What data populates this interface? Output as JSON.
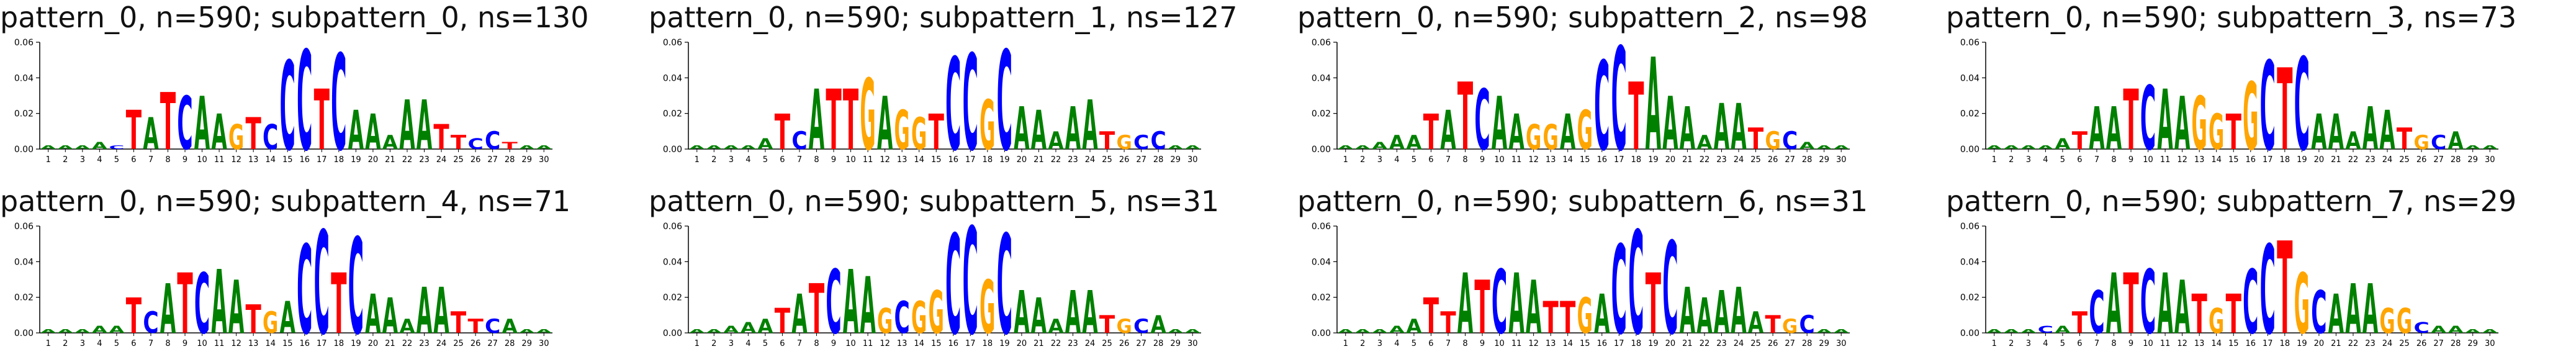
{
  "chart_data": [
    {
      "type": "sequence-logo",
      "title": "pattern_0, n=590; subpattern_0, ns=130",
      "ylim": [
        0,
        0.06
      ],
      "y_ticks": [
        "0.00",
        "0.02",
        "0.04",
        "0.06"
      ],
      "positions": [
        "1",
        "2",
        "3",
        "4",
        "5",
        "6",
        "7",
        "8",
        "9",
        "10",
        "11",
        "12",
        "13",
        "14",
        "15",
        "16",
        "17",
        "18",
        "19",
        "20",
        "21",
        "22",
        "23",
        "24",
        "25",
        "26",
        "27",
        "28",
        "29",
        "30"
      ],
      "consensus": [
        "A",
        "A",
        "A",
        "A",
        "C",
        "T",
        "A",
        "T",
        "C",
        "A",
        "A",
        "G",
        "T",
        "C",
        "C",
        "C",
        "T",
        "C",
        "A",
        "A",
        "A",
        "A",
        "A",
        "T",
        "T",
        "C",
        "C",
        "T",
        "A",
        "A"
      ],
      "heights": [
        0.002,
        0.002,
        0.002,
        0.004,
        0.002,
        0.022,
        0.018,
        0.032,
        0.03,
        0.03,
        0.02,
        0.014,
        0.018,
        0.014,
        0.05,
        0.056,
        0.034,
        0.054,
        0.022,
        0.02,
        0.008,
        0.028,
        0.028,
        0.014,
        0.008,
        0.006,
        0.01,
        0.004,
        0.002,
        0.002
      ]
    },
    {
      "type": "sequence-logo",
      "title": "pattern_0, n=590; subpattern_1, ns=127",
      "ylim": [
        0,
        0.06
      ],
      "y_ticks": [
        "0.00",
        "0.02",
        "0.04",
        "0.06"
      ],
      "positions": [
        "1",
        "2",
        "3",
        "4",
        "5",
        "6",
        "7",
        "8",
        "9",
        "10",
        "11",
        "12",
        "13",
        "14",
        "15",
        "16",
        "17",
        "18",
        "19",
        "20",
        "21",
        "22",
        "23",
        "24",
        "25",
        "26",
        "27",
        "28",
        "29",
        "30"
      ],
      "consensus": [
        "A",
        "A",
        "A",
        "A",
        "A",
        "T",
        "C",
        "A",
        "T",
        "T",
        "G",
        "A",
        "G",
        "G",
        "T",
        "C",
        "C",
        "G",
        "C",
        "A",
        "A",
        "A",
        "A",
        "A",
        "T",
        "G",
        "C",
        "C",
        "A",
        "A"
      ],
      "heights": [
        0.002,
        0.002,
        0.002,
        0.002,
        0.006,
        0.02,
        0.01,
        0.034,
        0.034,
        0.034,
        0.04,
        0.03,
        0.022,
        0.018,
        0.02,
        0.052,
        0.054,
        0.028,
        0.056,
        0.024,
        0.022,
        0.01,
        0.024,
        0.028,
        0.01,
        0.008,
        0.008,
        0.01,
        0.002,
        0.002
      ]
    },
    {
      "type": "sequence-logo",
      "title": "pattern_0, n=590; subpattern_2, ns=98",
      "ylim": [
        0,
        0.06
      ],
      "y_ticks": [
        "0.00",
        "0.02",
        "0.04",
        "0.06"
      ],
      "positions": [
        "1",
        "2",
        "3",
        "4",
        "5",
        "6",
        "7",
        "8",
        "9",
        "10",
        "11",
        "12",
        "13",
        "14",
        "15",
        "16",
        "17",
        "18",
        "19",
        "20",
        "21",
        "22",
        "23",
        "24",
        "25",
        "26",
        "27",
        "28",
        "29",
        "30"
      ],
      "consensus": [
        "A",
        "A",
        "A",
        "A",
        "A",
        "T",
        "A",
        "T",
        "C",
        "A",
        "A",
        "G",
        "G",
        "A",
        "G",
        "C",
        "C",
        "T",
        "A",
        "A",
        "A",
        "A",
        "A",
        "A",
        "T",
        "G",
        "C",
        "A",
        "A",
        "A"
      ],
      "heights": [
        0.002,
        0.002,
        0.004,
        0.008,
        0.008,
        0.02,
        0.022,
        0.038,
        0.034,
        0.03,
        0.02,
        0.014,
        0.014,
        0.02,
        0.022,
        0.05,
        0.058,
        0.038,
        0.052,
        0.03,
        0.024,
        0.008,
        0.026,
        0.026,
        0.012,
        0.01,
        0.01,
        0.004,
        0.002,
        0.002
      ]
    },
    {
      "type": "sequence-logo",
      "title": "pattern_0, n=590; subpattern_3, ns=73",
      "ylim": [
        0,
        0.06
      ],
      "y_ticks": [
        "0.00",
        "0.02",
        "0.04",
        "0.06"
      ],
      "positions": [
        "1",
        "2",
        "3",
        "4",
        "5",
        "6",
        "7",
        "8",
        "9",
        "10",
        "11",
        "12",
        "13",
        "14",
        "15",
        "16",
        "17",
        "18",
        "19",
        "20",
        "21",
        "22",
        "23",
        "24",
        "25",
        "26",
        "27",
        "28",
        "29",
        "30"
      ],
      "consensus": [
        "A",
        "A",
        "A",
        "A",
        "A",
        "T",
        "A",
        "A",
        "T",
        "C",
        "A",
        "A",
        "G",
        "G",
        "T",
        "G",
        "C",
        "T",
        "C",
        "A",
        "A",
        "A",
        "A",
        "A",
        "T",
        "G",
        "C",
        "A",
        "A",
        "A"
      ],
      "heights": [
        0.002,
        0.002,
        0.002,
        0.002,
        0.006,
        0.01,
        0.024,
        0.024,
        0.034,
        0.036,
        0.034,
        0.03,
        0.03,
        0.02,
        0.02,
        0.038,
        0.05,
        0.046,
        0.052,
        0.02,
        0.02,
        0.01,
        0.024,
        0.022,
        0.012,
        0.008,
        0.008,
        0.01,
        0.002,
        0.002
      ]
    },
    {
      "type": "sequence-logo",
      "title": "pattern_0, n=590; subpattern_4, ns=71",
      "ylim": [
        0,
        0.06
      ],
      "y_ticks": [
        "0.00",
        "0.02",
        "0.04",
        "0.06"
      ],
      "positions": [
        "1",
        "2",
        "3",
        "4",
        "5",
        "6",
        "7",
        "8",
        "9",
        "10",
        "11",
        "12",
        "13",
        "14",
        "15",
        "16",
        "17",
        "18",
        "19",
        "20",
        "21",
        "22",
        "23",
        "24",
        "25",
        "26",
        "27",
        "28",
        "29",
        "30"
      ],
      "consensus": [
        "A",
        "A",
        "A",
        "A",
        "A",
        "T",
        "C",
        "A",
        "T",
        "C",
        "A",
        "A",
        "T",
        "G",
        "A",
        "C",
        "C",
        "T",
        "C",
        "A",
        "A",
        "A",
        "A",
        "A",
        "T",
        "T",
        "C",
        "A",
        "A",
        "A"
      ],
      "heights": [
        0.002,
        0.002,
        0.002,
        0.004,
        0.004,
        0.02,
        0.012,
        0.028,
        0.034,
        0.034,
        0.036,
        0.03,
        0.016,
        0.012,
        0.018,
        0.05,
        0.058,
        0.034,
        0.054,
        0.022,
        0.02,
        0.008,
        0.026,
        0.026,
        0.012,
        0.008,
        0.008,
        0.008,
        0.002,
        0.002
      ]
    },
    {
      "type": "sequence-logo",
      "title": "pattern_0, n=590; subpattern_5, ns=31",
      "ylim": [
        0,
        0.06
      ],
      "y_ticks": [
        "0.00",
        "0.02",
        "0.04",
        "0.06"
      ],
      "positions": [
        "1",
        "2",
        "3",
        "4",
        "5",
        "6",
        "7",
        "8",
        "9",
        "10",
        "11",
        "12",
        "13",
        "14",
        "15",
        "16",
        "17",
        "18",
        "19",
        "20",
        "21",
        "22",
        "23",
        "24",
        "25",
        "26",
        "27",
        "28",
        "29",
        "30"
      ],
      "consensus": [
        "A",
        "A",
        "A",
        "A",
        "A",
        "T",
        "A",
        "T",
        "C",
        "A",
        "A",
        "G",
        "C",
        "G",
        "G",
        "C",
        "C",
        "G",
        "C",
        "A",
        "A",
        "A",
        "A",
        "A",
        "T",
        "G",
        "C",
        "A",
        "A",
        "A"
      ],
      "heights": [
        0.002,
        0.002,
        0.004,
        0.006,
        0.008,
        0.014,
        0.022,
        0.028,
        0.036,
        0.036,
        0.032,
        0.014,
        0.018,
        0.018,
        0.024,
        0.056,
        0.06,
        0.03,
        0.056,
        0.024,
        0.02,
        0.008,
        0.024,
        0.024,
        0.01,
        0.008,
        0.008,
        0.01,
        0.002,
        0.002
      ]
    },
    {
      "type": "sequence-logo",
      "title": "pattern_0, n=590; subpattern_6, ns=31",
      "ylim": [
        0,
        0.06
      ],
      "y_ticks": [
        "0.00",
        "0.02",
        "0.04",
        "0.06"
      ],
      "positions": [
        "1",
        "2",
        "3",
        "4",
        "5",
        "6",
        "7",
        "8",
        "9",
        "10",
        "11",
        "12",
        "13",
        "14",
        "15",
        "16",
        "17",
        "18",
        "19",
        "20",
        "21",
        "22",
        "23",
        "24",
        "25",
        "26",
        "27",
        "28",
        "29",
        "30"
      ],
      "consensus": [
        "A",
        "A",
        "A",
        "A",
        "A",
        "T",
        "T",
        "A",
        "T",
        "C",
        "A",
        "A",
        "T",
        "T",
        "G",
        "A",
        "C",
        "C",
        "T",
        "C",
        "A",
        "A",
        "A",
        "A",
        "A",
        "T",
        "G",
        "C",
        "A",
        "A"
      ],
      "heights": [
        0.002,
        0.002,
        0.002,
        0.004,
        0.008,
        0.02,
        0.012,
        0.034,
        0.03,
        0.036,
        0.034,
        0.03,
        0.018,
        0.018,
        0.02,
        0.022,
        0.05,
        0.058,
        0.034,
        0.052,
        0.026,
        0.02,
        0.024,
        0.026,
        0.012,
        0.01,
        0.008,
        0.01,
        0.002,
        0.002
      ]
    },
    {
      "type": "sequence-logo",
      "title": "pattern_0, n=590; subpattern_7, ns=29",
      "ylim": [
        0,
        0.06
      ],
      "y_ticks": [
        "0.00",
        "0.02",
        "0.04",
        "0.06"
      ],
      "positions": [
        "1",
        "2",
        "3",
        "4",
        "5",
        "6",
        "7",
        "8",
        "9",
        "10",
        "11",
        "12",
        "13",
        "14",
        "15",
        "16",
        "17",
        "18",
        "19",
        "20",
        "21",
        "22",
        "23",
        "24",
        "25",
        "26",
        "27",
        "28",
        "29",
        "30"
      ],
      "consensus": [
        "A",
        "A",
        "A",
        "C",
        "A",
        "T",
        "C",
        "A",
        "T",
        "C",
        "A",
        "A",
        "T",
        "G",
        "T",
        "C",
        "C",
        "T",
        "G",
        "C",
        "A",
        "A",
        "A",
        "G",
        "G",
        "C",
        "A",
        "A",
        "A",
        "A"
      ],
      "heights": [
        0.002,
        0.002,
        0.002,
        0.004,
        0.004,
        0.012,
        0.024,
        0.034,
        0.034,
        0.036,
        0.034,
        0.03,
        0.022,
        0.014,
        0.022,
        0.036,
        0.05,
        0.052,
        0.034,
        0.024,
        0.022,
        0.028,
        0.028,
        0.014,
        0.014,
        0.006,
        0.004,
        0.004,
        0.002,
        0.002
      ]
    }
  ],
  "base_colors": {
    "A": "#008000",
    "C": "#0000ff",
    "G": "#ffa500",
    "T": "#ff0000"
  }
}
